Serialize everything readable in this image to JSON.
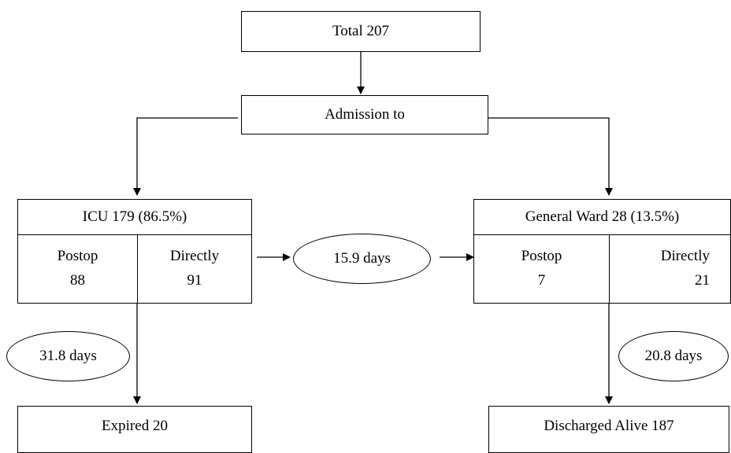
{
  "nodes": {
    "total": "Total 207",
    "admission": "Admission to",
    "icu": {
      "title": "ICU 179 (86.5%)",
      "postop_label": "Postop",
      "postop_value": "88",
      "directly_label": "Directly",
      "directly_value": "91"
    },
    "ward": {
      "title": "General Ward 28 (13.5%)",
      "postop_label": "Postop",
      "postop_value": "7",
      "directly_label": "Directly",
      "directly_value": "21"
    },
    "expired": "Expired 20",
    "discharged": "Discharged Alive 187"
  },
  "durations": {
    "icu_to_ward": "15.9 days",
    "icu_to_expired": "31.8 days",
    "ward_to_discharged": "20.8 days"
  }
}
